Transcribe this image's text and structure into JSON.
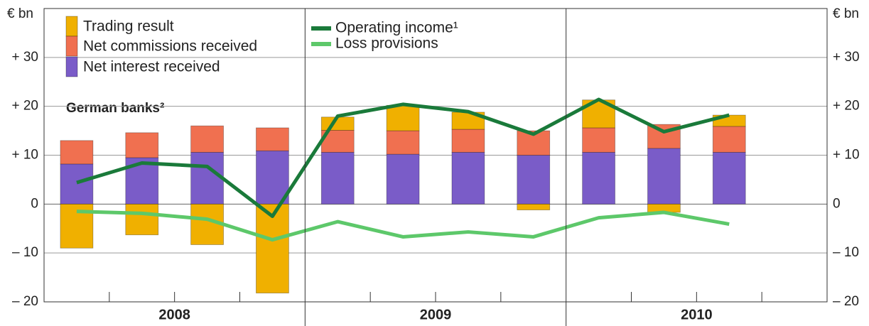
{
  "chart_data": {
    "type": "bar_line",
    "annotation": "German banks²",
    "y_label": "€ bn",
    "categories": [
      null,
      null,
      null,
      null,
      null,
      null,
      null,
      null,
      null,
      null,
      null,
      null
    ],
    "x_groups": [
      "2008",
      "2009",
      "2010"
    ],
    "ylim": [
      -20,
      40
    ],
    "yticks": [
      {
        "value": -20,
        "label": "– 20"
      },
      {
        "value": -10,
        "label": "– 10"
      },
      0,
      {
        "value": 10,
        "label": "+ 10"
      },
      {
        "value": 20,
        "label": "+ 20"
      },
      {
        "value": 30,
        "label": "+ 30"
      }
    ],
    "grid": true,
    "series": [
      {
        "name": "Trading result",
        "color": "#f0b000",
        "kind": "bar",
        "values": [
          -9.0,
          -6.3,
          -8.3,
          -18.2,
          2.7,
          5.2,
          3.5,
          -1.2,
          5.7,
          -1.7,
          2.3,
          null
        ]
      },
      {
        "name": "Net commissions received",
        "color": "#f07050",
        "kind": "bar",
        "values": [
          4.8,
          5.1,
          5.4,
          4.7,
          4.5,
          4.8,
          4.7,
          5.0,
          5.0,
          4.9,
          5.3,
          null
        ]
      },
      {
        "name": "Net interest received",
        "color": "#7a5cc8",
        "kind": "bar",
        "values": [
          8.2,
          9.5,
          10.6,
          10.9,
          10.6,
          10.2,
          10.6,
          10.0,
          10.6,
          11.4,
          10.6,
          null
        ]
      },
      {
        "name": "Operating income¹",
        "color": "#1a7a3a",
        "kind": "line",
        "values": [
          4.4,
          8.4,
          7.7,
          -2.5,
          18.0,
          20.4,
          18.9,
          14.3,
          21.4,
          14.8,
          18.2,
          null
        ]
      },
      {
        "name": "Loss provisions",
        "color": "#5dc86a",
        "kind": "line",
        "values": [
          -1.5,
          -1.9,
          -3.1,
          -7.3,
          -3.6,
          -6.7,
          -5.7,
          -6.7,
          -2.8,
          -1.7,
          -4.1,
          null
        ]
      }
    ]
  }
}
